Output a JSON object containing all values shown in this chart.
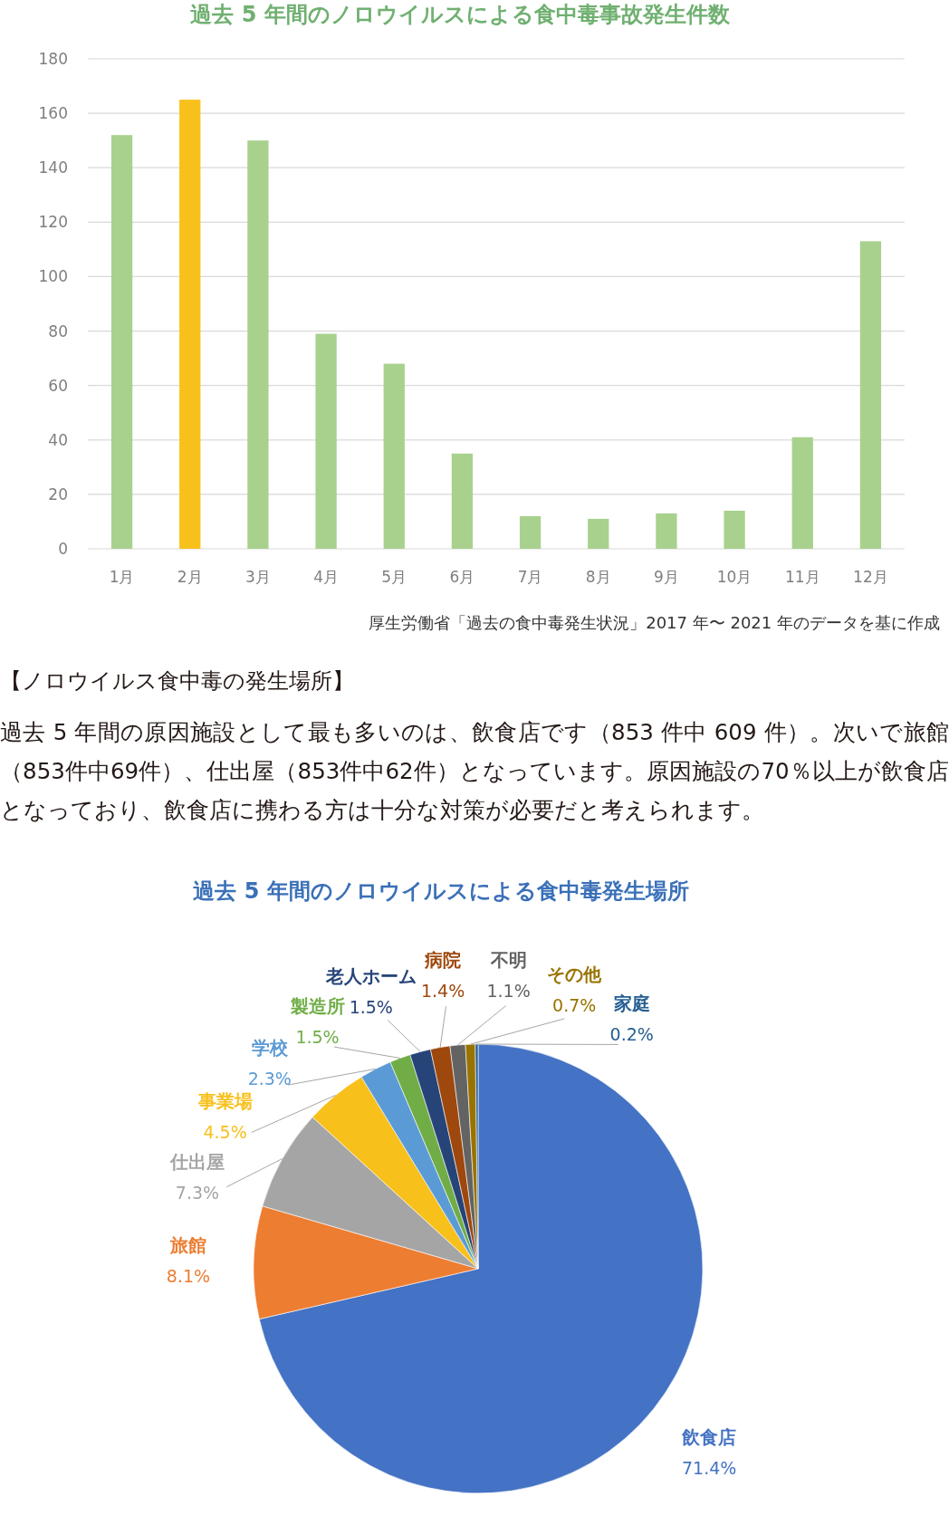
{
  "chart_data": [
    {
      "type": "bar",
      "title": "過去 5 年間のノロウイルスによる食中毒事故発生件数",
      "categories": [
        "1月",
        "2月",
        "3月",
        "4月",
        "5月",
        "6月",
        "7月",
        "8月",
        "9月",
        "10月",
        "11月",
        "12月"
      ],
      "values": [
        152,
        165,
        150,
        79,
        68,
        35,
        12,
        11,
        13,
        14,
        41,
        113
      ],
      "colors": [
        "#a9d18e",
        "#f8c01b",
        "#a9d18e",
        "#a9d18e",
        "#a9d18e",
        "#a9d18e",
        "#a9d18e",
        "#a9d18e",
        "#a9d18e",
        "#a9d18e",
        "#a9d18e",
        "#a9d18e"
      ],
      "ylim": [
        0,
        180
      ],
      "yticks": [
        0,
        20,
        40,
        60,
        80,
        100,
        120,
        140,
        160,
        180
      ],
      "grid": "y",
      "annotations": [
        "厚生労働省「過去の食中毒発生状況」2017 年〜 2021 年のデータを基に作成"
      ]
    },
    {
      "type": "other",
      "title": "【ノロウイルス食中毒の発生場所】",
      "annotations": [
        "過去 5 年間の原因施設として最も多いのは、飲食店です（853 件中 609 件）。次いで旅館（853件中69件）、仕出屋（853件中62件）となっています。原因施設の70％以上が飲食店となっており、飲食店に携わる方は十分な対策が必要だと考えられます。"
      ]
    },
    {
      "type": "pie",
      "title": "過去 5 年間のノロウイルスによる食中毒発生場所",
      "categories": [
        "飲食店",
        "旅館",
        "仕出屋",
        "事業場",
        "学校",
        "製造所",
        "老人ホーム",
        "病院",
        "不明",
        "その他",
        "家庭"
      ],
      "values": [
        71.4,
        8.1,
        7.3,
        4.5,
        2.3,
        1.5,
        1.5,
        1.4,
        1.1,
        0.7,
        0.2
      ],
      "colors": [
        "#4472c4",
        "#ed7d31",
        "#a5a5a5",
        "#f8c01b",
        "#5b9bd5",
        "#70ad47",
        "#264478",
        "#9e480e",
        "#636363",
        "#997300",
        "#255e91"
      ],
      "value_labels": [
        "71.4%",
        "8.1%",
        "7.3%",
        "4.5%",
        "2.3%",
        "1.5%",
        "1.5%",
        "1.4%",
        "1.1%",
        "0.7%",
        "0.2%"
      ]
    }
  ]
}
